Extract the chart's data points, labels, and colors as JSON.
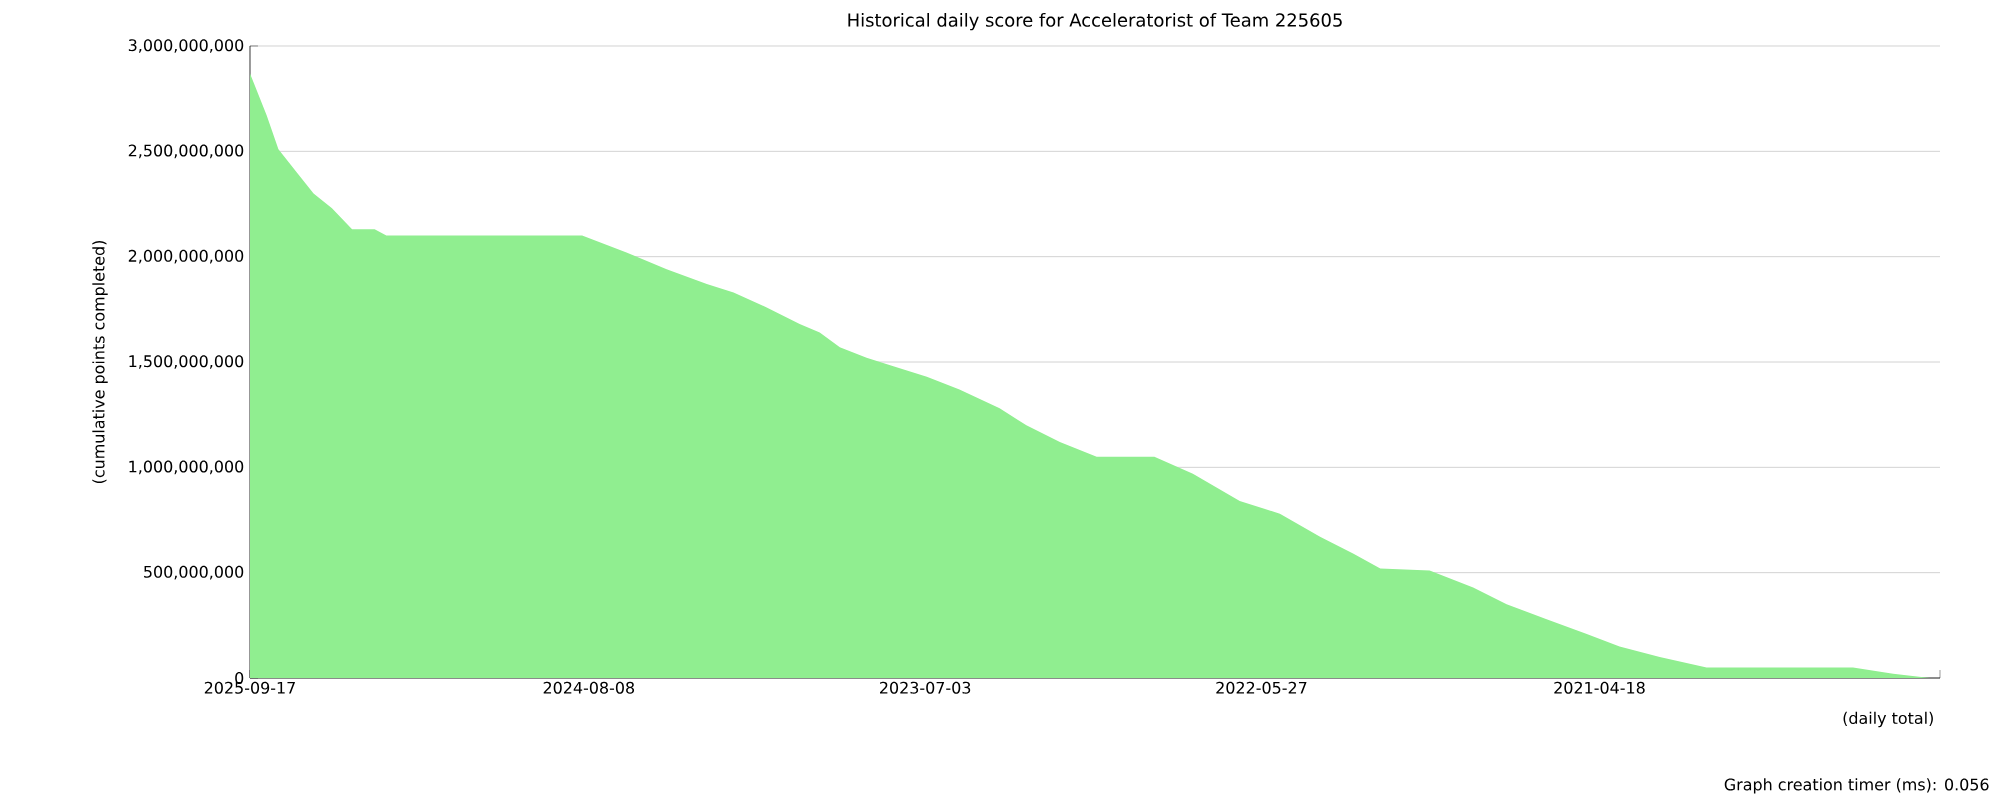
{
  "chart_data": {
    "type": "area",
    "title": "Historical daily score for Acceleratorist of Team 225605",
    "xlabel": "(daily total)",
    "ylabel": "(cumulative points completed)",
    "annotations": [
      "Graph creation timer (ms): 0.056"
    ],
    "color": "#90ee90",
    "grid": "y",
    "marker": "none",
    "xlim": [
      "2025-09-17",
      "2020-03-07"
    ],
    "xticks": [
      {
        "value": "2025-09-17",
        "label": "2025-09-17"
      },
      {
        "value": "2025-02-26",
        "label": null
      },
      {
        "value": "2024-08-08",
        "label": "2024-08-08"
      },
      {
        "value": "2024-01-19",
        "label": null
      },
      {
        "value": "2023-07-03",
        "label": "2023-07-03"
      },
      {
        "value": "2022-12-13",
        "label": null
      },
      {
        "value": "2022-05-27",
        "label": "2022-05-27"
      },
      {
        "value": "2021-11-05",
        "label": null
      },
      {
        "value": "2021-04-18",
        "label": "2021-04-18"
      },
      {
        "value": "2020-09-29",
        "label": null
      },
      {
        "value": "2020-03-07",
        "label": null
      }
    ],
    "ylim": [
      0,
      3000000000
    ],
    "yticks": [
      0,
      {
        "value": 500000000,
        "label": "500,000,000"
      },
      {
        "value": 1000000000,
        "label": "1,000,000,000"
      },
      {
        "value": 1500000000,
        "label": "1,500,000,000"
      },
      {
        "value": 2000000000,
        "label": "2,000,000,000"
      },
      {
        "value": 2500000000,
        "label": "2,500,000,000"
      },
      {
        "value": 3000000000,
        "label": "3,000,000,000"
      }
    ],
    "x": [
      "2025-09-17",
      "2025-08-28",
      "2025-08-14",
      "2025-07-23",
      "2025-07-03",
      "2025-06-11",
      "2025-05-18",
      "2025-04-21",
      "2025-04-07",
      "2024-08-16",
      "2024-06-24",
      "2024-05-07",
      "2024-03-20",
      "2024-02-17",
      "2024-01-09",
      "2023-11-30",
      "2023-11-06",
      "2023-10-13",
      "2023-09-11",
      "2023-08-10",
      "2023-07-01",
      "2023-05-23",
      "2023-04-05",
      "2023-03-04",
      "2023-01-23",
      "2022-12-10",
      "2022-10-02",
      "2022-08-17",
      "2022-06-22",
      "2022-05-05",
      "2022-03-18",
      "2022-02-06",
      "2022-01-05",
      "2021-11-07",
      "2021-09-16",
      "2021-08-07",
      "2021-06-21",
      "2021-05-04",
      "2021-03-25",
      "2021-02-05",
      "2020-12-11",
      "2020-06-19",
      "2020-05-02",
      "2020-03-19"
    ],
    "values": [
      2870000000,
      2670000000,
      2510000000,
      2400000000,
      2300000000,
      2230000000,
      2130000000,
      2130000000,
      2100000000,
      2100000000,
      2020000000,
      1940000000,
      1870000000,
      1830000000,
      1760000000,
      1680000000,
      1640000000,
      1570000000,
      1520000000,
      1480000000,
      1430000000,
      1370000000,
      1280000000,
      1200000000,
      1120000000,
      1050000000,
      1050000000,
      970000000,
      840000000,
      780000000,
      670000000,
      590000000,
      520000000,
      510000000,
      430000000,
      350000000,
      280000000,
      210000000,
      150000000,
      100000000,
      50000000,
      50000000,
      20000000,
      0
    ]
  }
}
